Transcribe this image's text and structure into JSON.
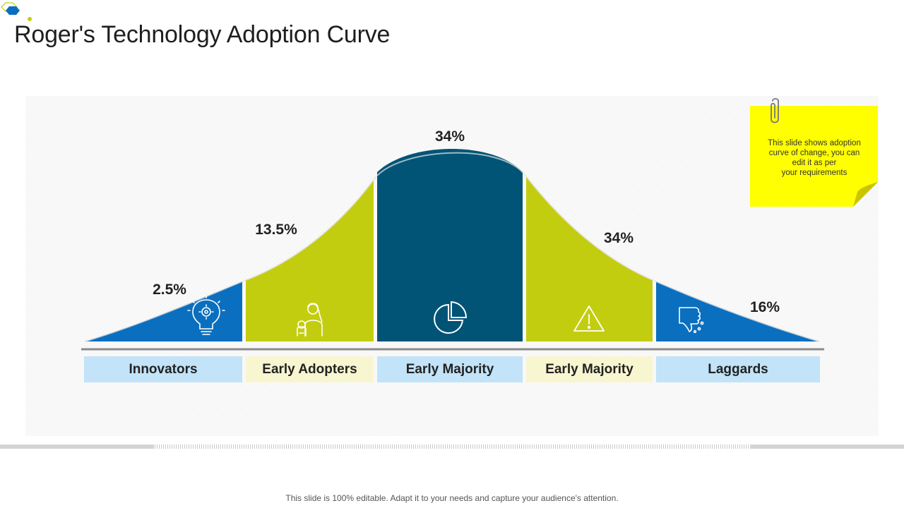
{
  "title": "Roger's Technology Adoption Curve",
  "footer": "This slide is 100% editable. Adapt it to your needs and capture your audience's attention.",
  "note": {
    "lines": [
      "This slide shows adoption",
      "curve of change, you can",
      "edit it as per",
      "your requirements"
    ]
  },
  "colors": {
    "blue": "#0b6fbf",
    "lime": "#c3cd0f",
    "navy": "#015476",
    "label_blue": "#c2e3f8",
    "label_yellow": "#f8f6d0",
    "note_yellow": "#ffff00"
  },
  "segments": [
    {
      "label": "Innovators",
      "percent": "2.5%",
      "icon": "lightbulb-gear-icon"
    },
    {
      "label": "Early Adopters",
      "percent": "13.5%",
      "icon": "person-with-pet-icon"
    },
    {
      "label": "Early Majority",
      "percent": "34%",
      "icon": "pie-chart-icon"
    },
    {
      "label": "Early Majority",
      "percent": "34%",
      "icon": "warning-icon"
    },
    {
      "label": "Laggards",
      "percent": "16%",
      "icon": "thumbs-down-icon"
    }
  ]
}
